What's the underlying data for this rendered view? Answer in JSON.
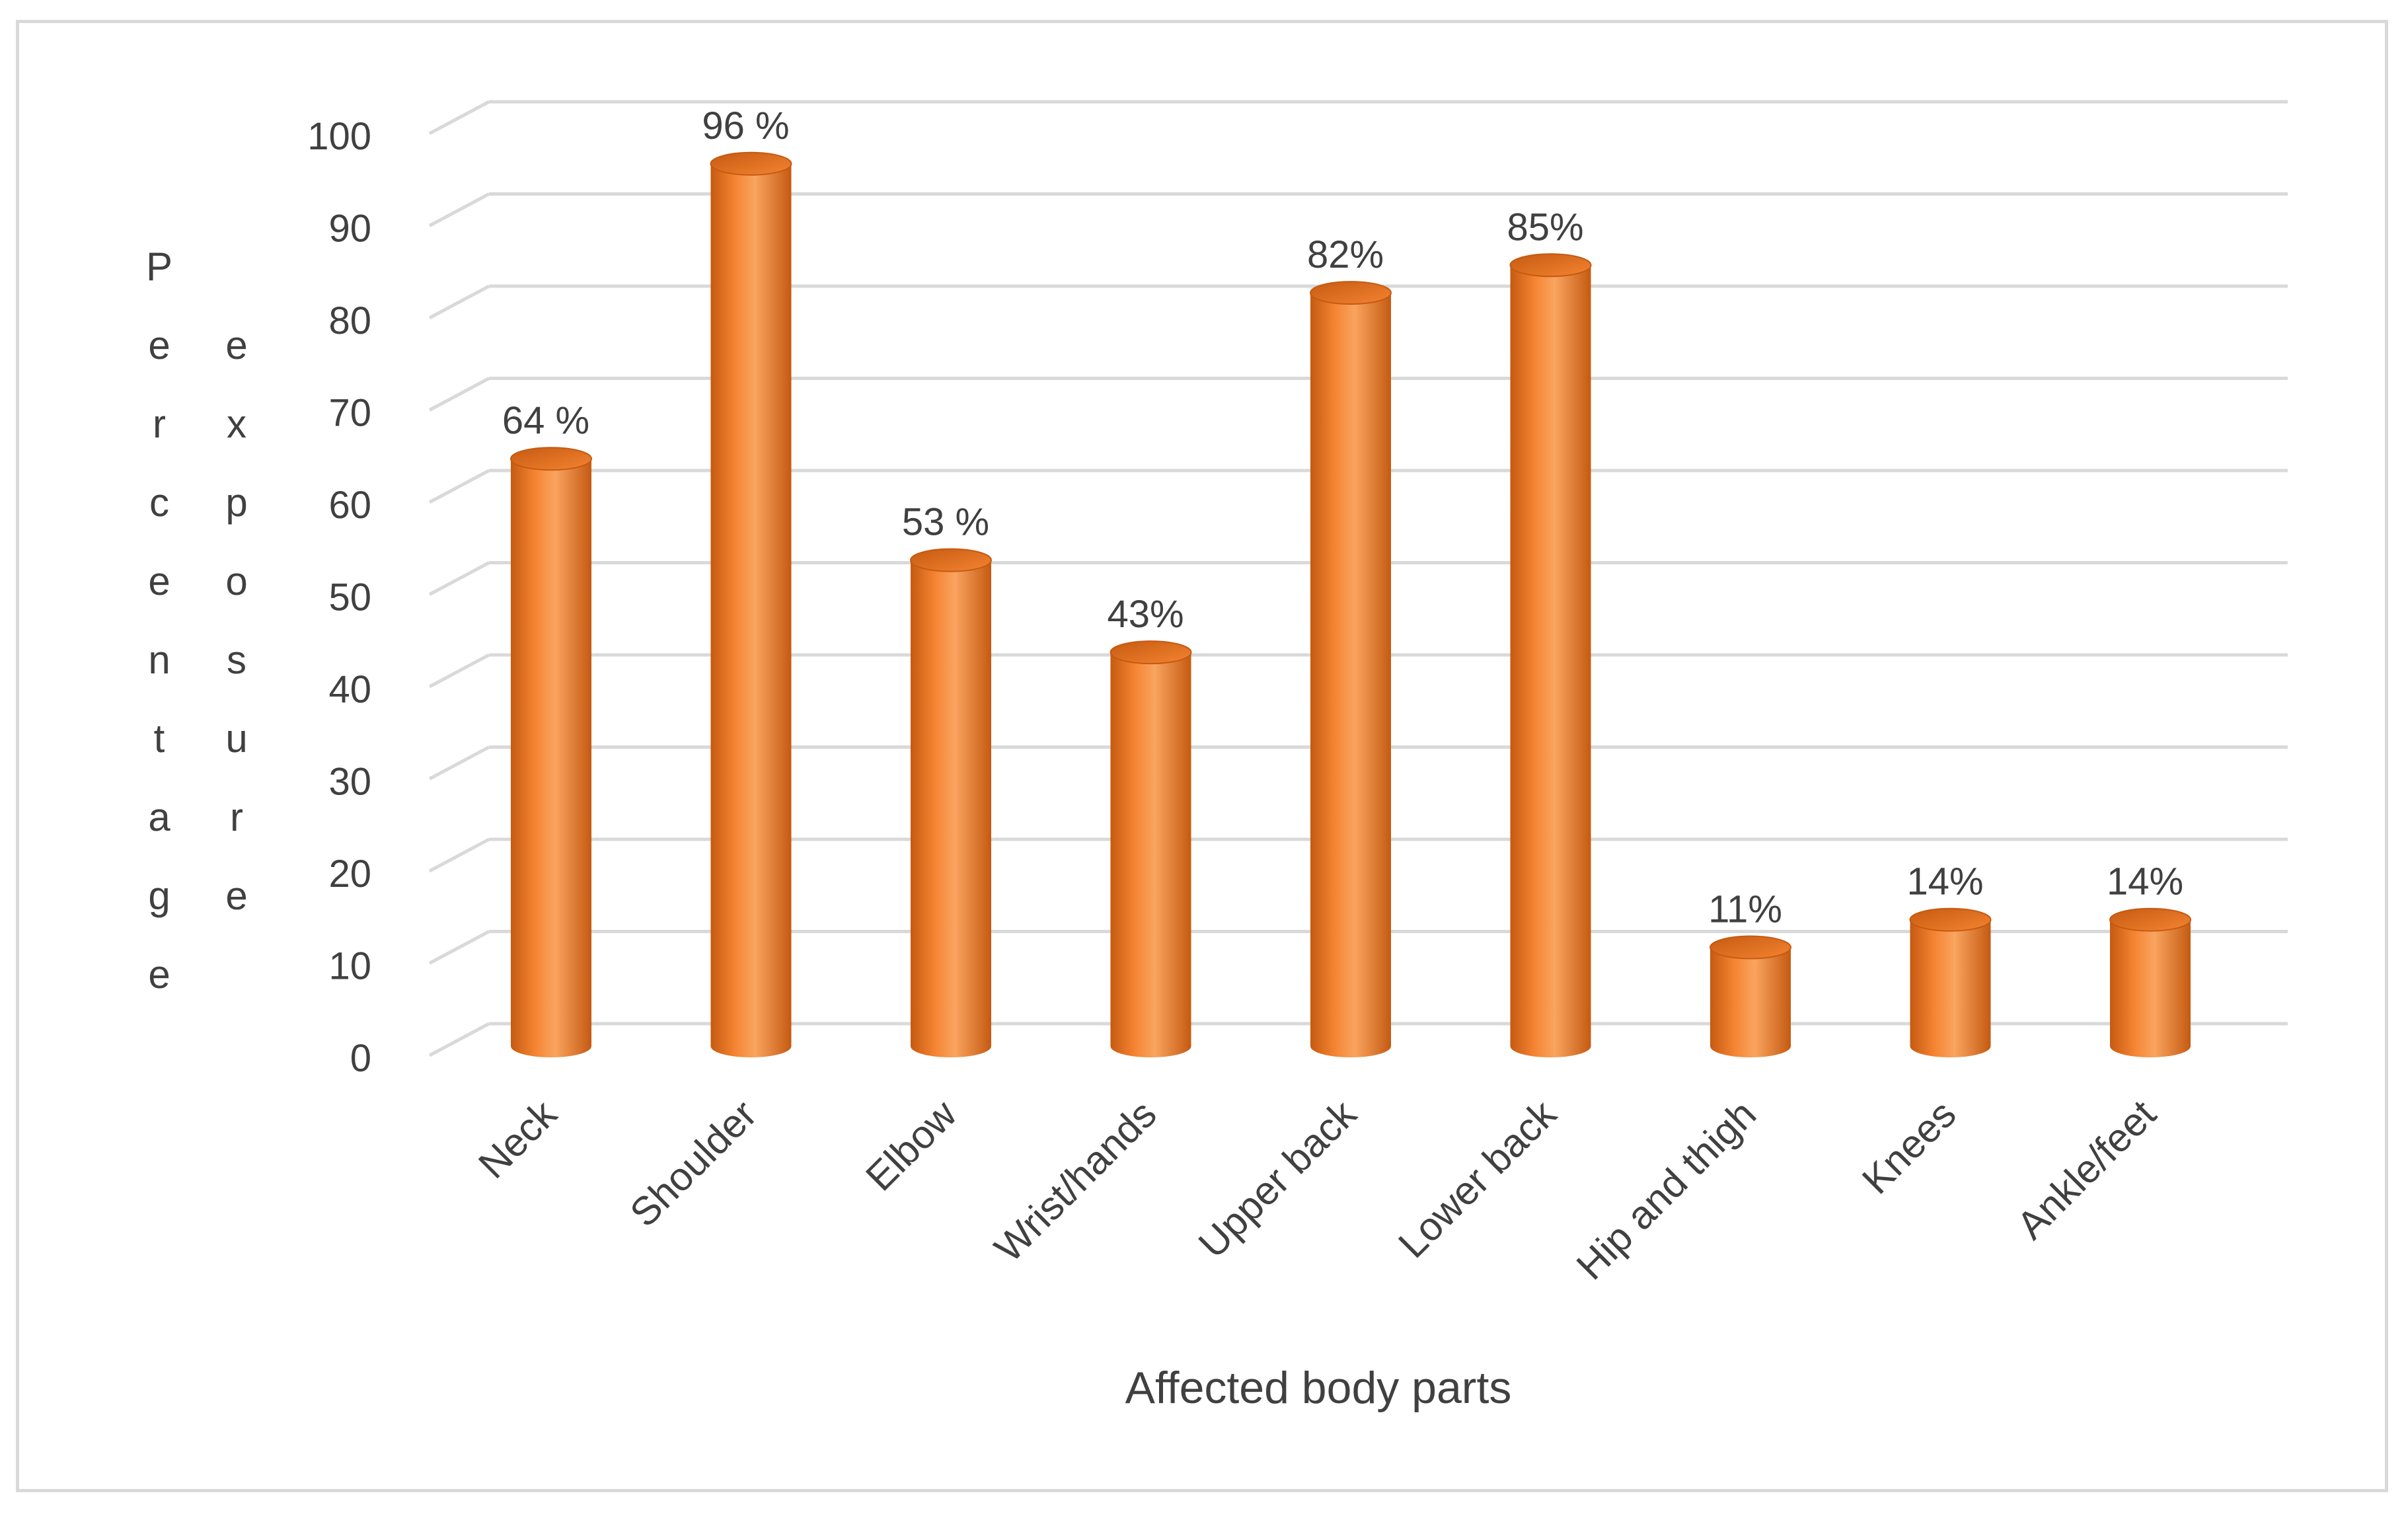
{
  "chart_data": {
    "type": "bar",
    "style": "3d-cylinder",
    "title": "",
    "categories": [
      "Neck",
      "Shoulder",
      "Elbow",
      "Wrist/hands",
      "Upper back",
      "Lower back",
      "Hip and thigh",
      "Knees",
      "Ankle/feet"
    ],
    "values": [
      64,
      96,
      53,
      43,
      82,
      85,
      11,
      14,
      14
    ],
    "data_labels": [
      "64 %",
      "96 %",
      "53 %",
      "43%",
      "82%",
      "85%",
      "11%",
      "14%",
      "14%"
    ],
    "xlabel": "Affected body parts",
    "ylabel_line1": "Percentage",
    "ylabel_line2": "exposure",
    "ylim": [
      0,
      100
    ],
    "yticks": [
      0,
      10,
      20,
      30,
      40,
      50,
      60,
      70,
      80,
      90,
      100
    ],
    "grid": true,
    "legend": "none",
    "bar_color": "#f58432",
    "bar_dark_color": "#c55a11",
    "bar_light_color": "#f9a45f",
    "grid_color": "#d9d9d9",
    "text_color": "#404040"
  }
}
